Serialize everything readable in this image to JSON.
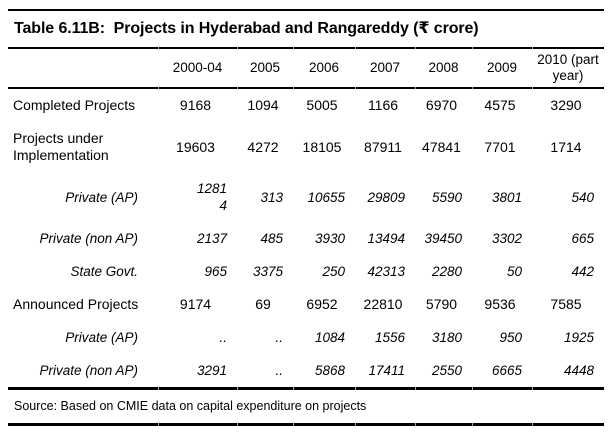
{
  "title": "Table 6.11B:  Projects in Hyderabad and Rangareddy (₹ crore)",
  "table": {
    "columns": [
      "",
      "2000-04",
      "2005",
      "2006",
      "2007",
      "2008",
      "2009",
      "2010 (part year)"
    ],
    "rows": [
      {
        "label": "Completed Projects",
        "type": "category",
        "values": [
          "9168",
          "1094",
          "5005",
          "1166",
          "6970",
          "4575",
          "3290"
        ]
      },
      {
        "label": "Projects under Implementation",
        "type": "category",
        "values": [
          "19603",
          "4272",
          "18105",
          "87911",
          "47841",
          "7701",
          "1714"
        ]
      },
      {
        "label": "Private (AP)",
        "type": "subcategory",
        "values": [
          "1281 4",
          "313",
          "10655",
          "29809",
          "5590",
          "3801",
          "540"
        ]
      },
      {
        "label": "Private (non AP)",
        "type": "subcategory",
        "values": [
          "2137",
          "485",
          "3930",
          "13494",
          "39450",
          "3302",
          "665"
        ]
      },
      {
        "label": "State Govt.",
        "type": "subcategory",
        "values": [
          "965",
          "3375",
          "250",
          "42313",
          "2280",
          "50",
          "442"
        ]
      },
      {
        "label": "Announced Projects",
        "type": "category",
        "values": [
          "9174",
          "69",
          "6952",
          "22810",
          "5790",
          "9536",
          "7585"
        ]
      },
      {
        "label": "Private (AP)",
        "type": "subcategory",
        "values": [
          "..",
          "..",
          "1084",
          "1556",
          "3180",
          "950",
          "1925"
        ]
      },
      {
        "label": "Private (non AP)",
        "type": "subcategory",
        "values": [
          "3291",
          "..",
          "5868",
          "17411",
          "2550",
          "6665",
          "4448"
        ]
      }
    ]
  },
  "source": "Source: Based on CMIE data on capital expenditure on projects",
  "colors": {
    "text": "#000000",
    "rule": "#000000",
    "tick": "#a9a9a9",
    "background": "#ffffff"
  }
}
